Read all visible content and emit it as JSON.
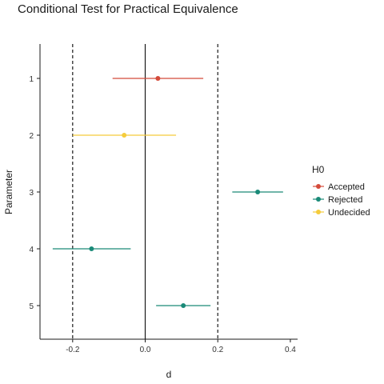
{
  "chart_data": {
    "type": "scatter",
    "title": "Conditional Test for Practical Equivalence",
    "xlabel": "d",
    "ylabel": "Parameter",
    "xlim": [
      -0.29,
      0.42
    ],
    "x_ticks": [
      -0.2,
      0.0,
      0.2,
      0.4
    ],
    "x_tick_labels": [
      "-0.2",
      "0.0",
      "0.2",
      "0.4"
    ],
    "categories": [
      "1",
      "2",
      "3",
      "4",
      "5"
    ],
    "equivalence_bounds": [
      -0.2,
      0.2
    ],
    "zero_line": 0.0,
    "legend": {
      "title": "H0",
      "placement": "right",
      "entries": [
        {
          "name": "Accepted",
          "color": "#d44a3a"
        },
        {
          "name": "Rejected",
          "color": "#1a8a78"
        },
        {
          "name": "Undecided",
          "color": "#f5cc3c"
        }
      ]
    },
    "points": [
      {
        "parameter": "1",
        "estimate": 0.035,
        "ci_low": -0.09,
        "ci_high": 0.16,
        "h0": "Accepted"
      },
      {
        "parameter": "2",
        "estimate": -0.058,
        "ci_low": -0.2,
        "ci_high": 0.085,
        "h0": "Undecided"
      },
      {
        "parameter": "3",
        "estimate": 0.31,
        "ci_low": 0.24,
        "ci_high": 0.38,
        "h0": "Rejected"
      },
      {
        "parameter": "4",
        "estimate": -0.148,
        "ci_low": -0.255,
        "ci_high": -0.04,
        "h0": "Rejected"
      },
      {
        "parameter": "5",
        "estimate": 0.105,
        "ci_low": 0.03,
        "ci_high": 0.18,
        "h0": "Rejected"
      }
    ]
  }
}
